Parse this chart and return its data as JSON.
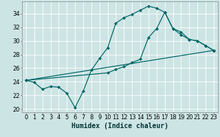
{
  "xlabel": "Humidex (Indice chaleur)",
  "bg_color": "#cde4e4",
  "line_color": "#006666",
  "grid_color": "#ffffff",
  "xlim": [
    -0.5,
    23.5
  ],
  "ylim": [
    19.5,
    35.8
  ],
  "yticks": [
    20,
    22,
    24,
    26,
    28,
    30,
    32,
    34
  ],
  "xticks": [
    0,
    1,
    2,
    3,
    4,
    5,
    6,
    7,
    8,
    9,
    10,
    11,
    12,
    13,
    14,
    15,
    16,
    17,
    18,
    19,
    20,
    21,
    22,
    23
  ],
  "line1_x": [
    0,
    1,
    2,
    3,
    4,
    5,
    6,
    7,
    8,
    9,
    10,
    11,
    12,
    13,
    14,
    15,
    16,
    17,
    18,
    19,
    20,
    21,
    22,
    23
  ],
  "line1_y": [
    24.2,
    23.9,
    22.9,
    23.3,
    23.2,
    22.3,
    20.2,
    22.6,
    25.7,
    27.4,
    29.0,
    32.6,
    33.4,
    33.9,
    34.5,
    35.1,
    34.8,
    34.2,
    31.8,
    31.3,
    30.2,
    30.0,
    29.3,
    28.6
  ],
  "line2_x": [
    0,
    10,
    11,
    12,
    13,
    14,
    15,
    16,
    17,
    18,
    19,
    20,
    21,
    22,
    23
  ],
  "line2_y": [
    24.2,
    25.3,
    25.8,
    26.2,
    26.8,
    27.3,
    30.5,
    31.8,
    34.2,
    31.8,
    30.9,
    30.2,
    30.0,
    29.3,
    28.6
  ],
  "line3_x": [
    0,
    23
  ],
  "line3_y": [
    24.2,
    28.6
  ],
  "marker_size": 2.2,
  "linewidth": 0.9,
  "xlabel_fontsize": 7,
  "tick_fontsize": 6
}
